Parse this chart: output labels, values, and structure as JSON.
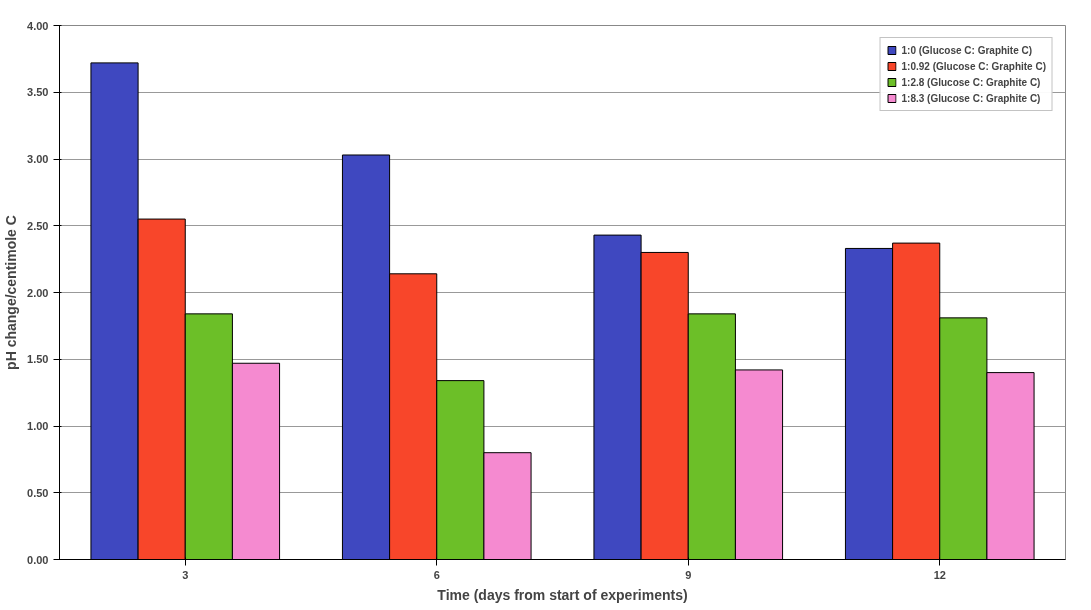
{
  "chart_data": {
    "type": "bar",
    "xlabel": "Time (days from start of experiments)",
    "ylabel": "pH change/centimole C",
    "categories": [
      "3",
      "6",
      "9",
      "12"
    ],
    "series": [
      {
        "name": "1:0 (Glucose C: Graphite C)",
        "color": "#3f48c0",
        "values": [
          3.72,
          3.03,
          2.43,
          2.33
        ]
      },
      {
        "name": "1:0.92 (Glucose C: Graphite C)",
        "color": "#f8462a",
        "values": [
          2.55,
          2.14,
          2.3,
          2.37
        ]
      },
      {
        "name": "1:2.8 (Glucose C: Graphite C)",
        "color": "#6cbf28",
        "values": [
          1.84,
          1.34,
          1.84,
          1.81
        ]
      },
      {
        "name": "1:8.3 (Glucose C: Graphite C)",
        "color": "#f58ad0",
        "values": [
          1.47,
          0.8,
          1.42,
          1.4
        ]
      }
    ],
    "ylim": [
      0,
      4
    ],
    "yticks": [
      {
        "value": 0,
        "label": "0.00"
      },
      {
        "value": 0.5,
        "label": "0.50"
      },
      {
        "value": 1,
        "label": "1.00"
      },
      {
        "value": 1.5,
        "label": "1.50"
      },
      {
        "value": 2,
        "label": "2.00"
      },
      {
        "value": 2.5,
        "label": "2.50"
      },
      {
        "value": 3,
        "label": "3.00"
      },
      {
        "value": 3.5,
        "label": "3.50"
      },
      {
        "value": 4,
        "label": "4.00"
      }
    ],
    "grid": "y",
    "legend": "top right"
  }
}
